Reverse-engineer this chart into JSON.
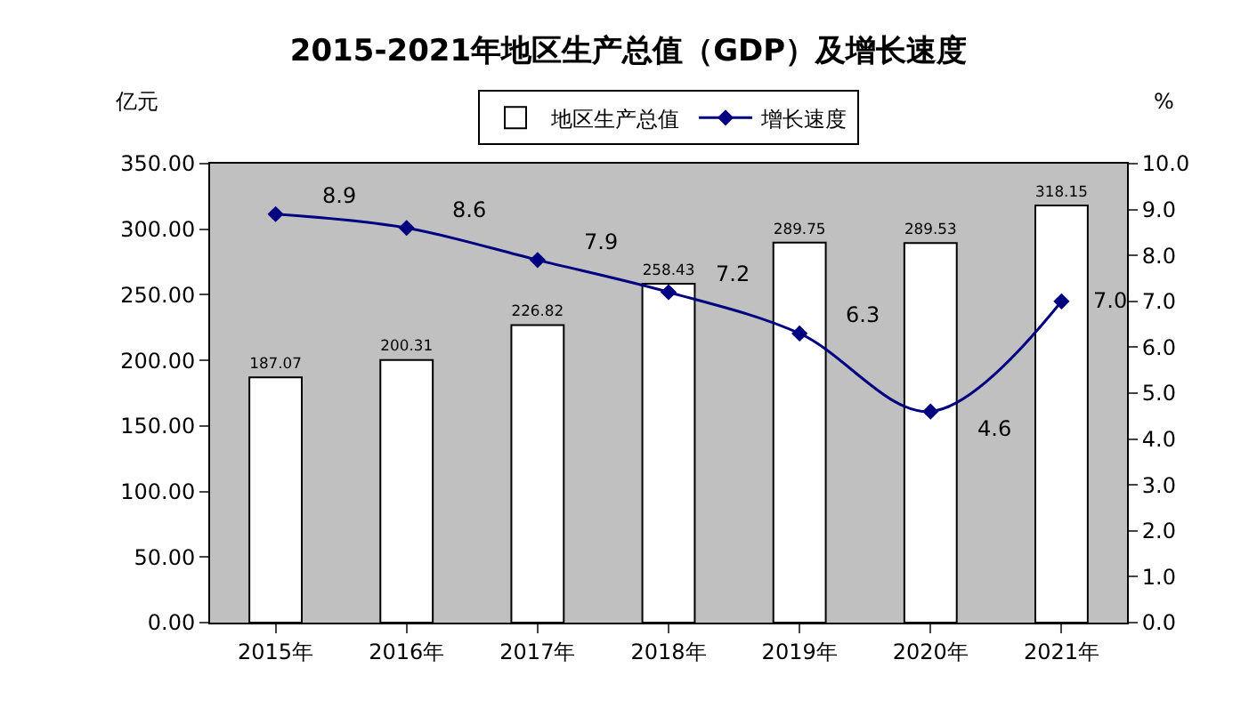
{
  "chart_data": {
    "type": "bar",
    "title": "2015-2021年地区生产总值（GDP）及增长速度",
    "ylabel": "亿元",
    "y2label": "%",
    "categories": [
      "2015年",
      "2016年",
      "2017年",
      "2018年",
      "2019年",
      "2020年",
      "2021年"
    ],
    "series": [
      {
        "name": "地区生产总值",
        "color": "#ffffff",
        "values": [
          187.07,
          200.31,
          226.82,
          258.43,
          289.75,
          289.53,
          318.15
        ],
        "value_labels": [
          "187.07",
          "200.31",
          "226.82",
          "258.43",
          "289.75",
          "289.53",
          "318.15"
        ]
      },
      {
        "name": "增长速度",
        "type": "line",
        "axis": "y2",
        "color": "#000080",
        "marker": "diamond",
        "values": [
          8.9,
          8.6,
          7.9,
          7.2,
          6.3,
          4.6,
          7.0
        ],
        "value_labels": [
          "8.9",
          "8.6",
          "7.9",
          "7.2",
          "6.3",
          "4.6",
          "7.0"
        ]
      }
    ],
    "ylim": [
      0,
      350
    ],
    "yticks": [
      {
        "value": 0,
        "label": "0.00"
      },
      {
        "value": 50,
        "label": "50.00"
      },
      {
        "value": 100,
        "label": "100.00"
      },
      {
        "value": 150,
        "label": "150.00"
      },
      {
        "value": 200,
        "label": "200.00"
      },
      {
        "value": 250,
        "label": "250.00"
      },
      {
        "value": 300,
        "label": "300.00"
      },
      {
        "value": 350,
        "label": "350.00"
      }
    ],
    "y2lim": [
      0,
      10
    ],
    "y2ticks": [
      {
        "value": 0,
        "label": "0.0"
      },
      {
        "value": 1,
        "label": "1.0"
      },
      {
        "value": 2,
        "label": "2.0"
      },
      {
        "value": 3,
        "label": "3.0"
      },
      {
        "value": 4,
        "label": "4.0"
      },
      {
        "value": 5,
        "label": "5.0"
      },
      {
        "value": 6,
        "label": "6.0"
      },
      {
        "value": 7,
        "label": "7.0"
      },
      {
        "value": 8,
        "label": "8.0"
      },
      {
        "value": 9,
        "label": "9.0"
      },
      {
        "value": 10,
        "label": "10.0"
      }
    ],
    "grid": false,
    "legend": "top"
  }
}
